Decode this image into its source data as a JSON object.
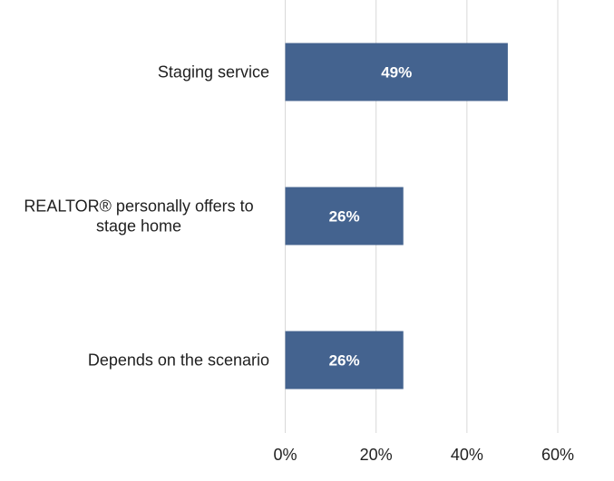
{
  "chart_data": {
    "type": "bar",
    "orientation": "horizontal",
    "categories": [
      [
        "Staging service"
      ],
      [
        "REALTOR® personally offers to",
        "stage home"
      ],
      [
        "Depends on the scenario"
      ]
    ],
    "values": [
      49,
      26,
      26
    ],
    "data_labels": [
      "49%",
      "26%",
      "26%"
    ],
    "xlim": [
      0,
      60
    ],
    "xticks": [
      0,
      20,
      40,
      60
    ],
    "xtick_labels": [
      "0%",
      "20%",
      "40%",
      "60%"
    ],
    "grid": "vertical",
    "legend": "none",
    "bar_color": "#44638f",
    "grid_color": "#d9d9d9"
  }
}
